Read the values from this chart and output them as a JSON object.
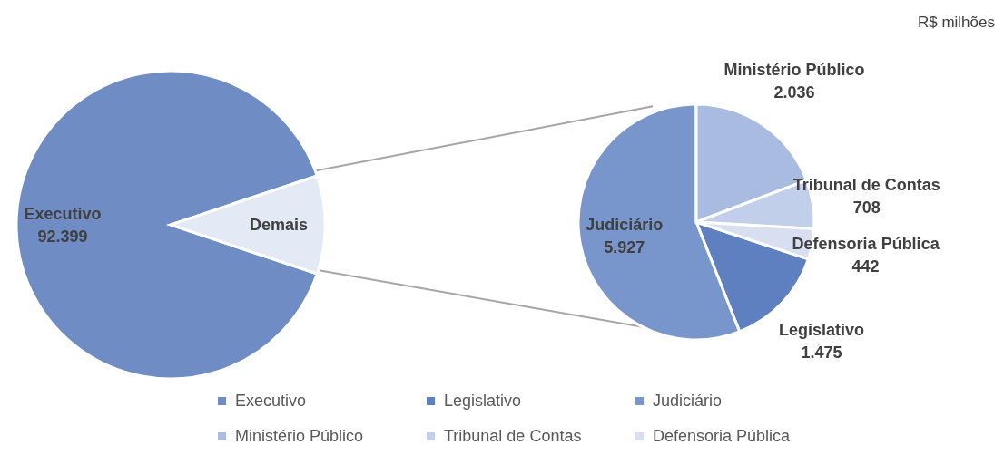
{
  "chart_data": [
    {
      "type": "pie",
      "categories": [
        "Executivo",
        "Demais"
      ],
      "values": [
        92399,
        10588
      ],
      "value_labels": [
        "92.399",
        null
      ],
      "colors": [
        "#6f8cc4",
        "#e3e9f5"
      ],
      "legend": "bottom"
    },
    {
      "type": "pie",
      "categories": [
        "Legislativo",
        "Judiciário",
        "Ministério Público",
        "Tribunal de Contas",
        "Defensoria Pública"
      ],
      "values": [
        1475,
        5927,
        2036,
        708,
        442
      ],
      "value_labels": [
        "1.475",
        "5.927",
        "2.036",
        "708",
        "442"
      ],
      "colors": [
        "#5f80c0",
        "#7895cc",
        "#a9bbe0",
        "#c2cfea",
        "#d7dff0"
      ],
      "legend": "bottom",
      "annotations": [
        "R$ milhões"
      ]
    }
  ]
}
